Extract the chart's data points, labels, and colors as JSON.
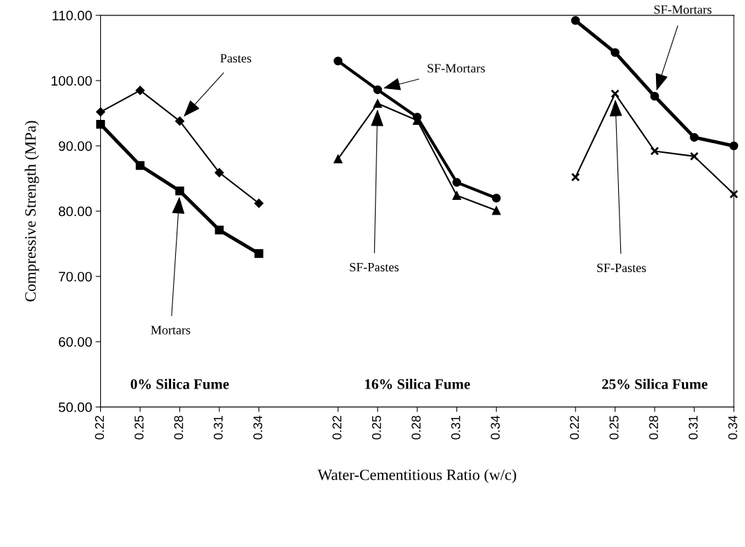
{
  "chart_data": {
    "type": "line",
    "xlabel": "Water-Cementitious Ratio (w/c)",
    "ylabel": "Compressive Strength (MPa)",
    "categories": [
      "0.22",
      "0.25",
      "0.28",
      "0.31",
      "0.34",
      null,
      "0.22",
      "0.25",
      "0.28",
      "0.31",
      "0.34",
      null,
      "0.22",
      "0.25",
      "0.28",
      "0.31",
      "0.34"
    ],
    "series": [
      {
        "name": "Pastes",
        "color": "#000000",
        "marker": "diamond",
        "values": [
          95.2,
          98.5,
          93.8,
          85.9,
          81.2,
          null,
          null,
          null,
          null,
          null,
          null,
          null,
          null,
          null,
          null,
          null,
          null
        ]
      },
      {
        "name": "Mortars",
        "color": "#000000",
        "marker": "square",
        "values": [
          93.3,
          87.0,
          83.1,
          77.1,
          73.5,
          null,
          null,
          null,
          null,
          null,
          null,
          null,
          null,
          null,
          null,
          null,
          null
        ]
      },
      {
        "name": "SF-Mortars",
        "color": "#000000",
        "marker": "circle",
        "values": [
          null,
          null,
          null,
          null,
          null,
          null,
          103.0,
          98.6,
          94.4,
          84.4,
          82.0,
          null,
          null,
          null,
          null,
          null,
          null
        ]
      },
      {
        "name": "SF-Pastes",
        "color": "#000000",
        "marker": "triangle",
        "values": [
          null,
          null,
          null,
          null,
          null,
          null,
          88.0,
          96.5,
          93.9,
          82.4,
          80.1,
          null,
          null,
          null,
          null,
          null,
          null
        ]
      },
      {
        "name": "SF-Mortars",
        "color": "#000000",
        "marker": "circle",
        "values": [
          null,
          null,
          null,
          null,
          null,
          null,
          null,
          null,
          null,
          null,
          null,
          null,
          109.2,
          104.3,
          97.6,
          91.3,
          90.0
        ]
      },
      {
        "name": "SF-Pastes",
        "color": "#000000",
        "marker": "cross",
        "values": [
          null,
          null,
          null,
          null,
          null,
          null,
          null,
          null,
          null,
          null,
          null,
          null,
          85.2,
          98.0,
          89.2,
          88.4,
          82.6
        ]
      }
    ],
    "annotations": [
      "0% Silica Fume",
      "16% Silica Fume",
      "25% Silica Fume"
    ],
    "ylim": [
      50,
      110
    ],
    "yticks": [
      {
        "value": 50,
        "label": "50.00"
      },
      {
        "value": 60,
        "label": "60.00"
      },
      {
        "value": 70,
        "label": "70.00"
      },
      {
        "value": 80,
        "label": "80.00"
      },
      {
        "value": 90,
        "label": "90.00"
      },
      {
        "value": 100,
        "label": "100.00"
      },
      {
        "value": 110,
        "label": "110.00"
      }
    ],
    "grid": false,
    "legend": false
  }
}
